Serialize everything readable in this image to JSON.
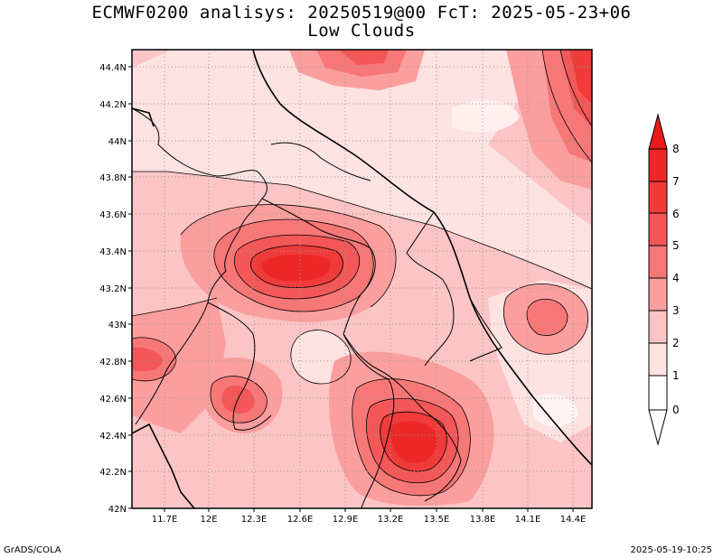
{
  "title": {
    "line1": "ECMWF0200 analisys: 20250519@00 FcT: 2025-05-23+06",
    "line2": "Low Clouds"
  },
  "footer": {
    "left": "GrADS/COLA",
    "right": "2025-05-19-10:25"
  },
  "map": {
    "region": "Central Italy (Marche, Umbria, Lazio, Abruzzo, Tuscany)",
    "lon_ticks": [
      "11.7E",
      "12E",
      "12.3E",
      "12.6E",
      "12.9E",
      "13.2E",
      "13.5E",
      "13.8E",
      "14.1E",
      "14.4E"
    ],
    "lat_ticks": [
      "44.4N",
      "44.2N",
      "44N",
      "43.8N",
      "43.6N",
      "43.4N",
      "43.2N",
      "43N",
      "42.8N",
      "42.6N",
      "42.4N",
      "42.2N",
      "42N"
    ],
    "lon_range": [
      11.55,
      14.5
    ],
    "lat_range": [
      42.0,
      44.5
    ],
    "grid": "dotted",
    "field": "Low Clouds",
    "maxima_centers": [
      {
        "lon": 12.6,
        "lat": 43.35,
        "value": 8
      },
      {
        "lon": 13.35,
        "lat": 42.35,
        "value": 8
      },
      {
        "lon": 14.4,
        "lat": 44.4,
        "value": 8
      },
      {
        "lon": 13.0,
        "lat": 44.45,
        "value": 7
      },
      {
        "lon": 12.2,
        "lat": 42.6,
        "value": 6
      },
      {
        "lon": 11.7,
        "lat": 42.8,
        "value": 6
      },
      {
        "lon": 14.2,
        "lat": 43.0,
        "value": 5
      },
      {
        "lon": 12.0,
        "lat": 43.65,
        "value": 3
      }
    ]
  },
  "colorbar": {
    "levels": [
      "0",
      "1",
      "2",
      "3",
      "4",
      "5",
      "6",
      "7",
      "8"
    ],
    "colors": [
      "#ffffff",
      "#fde2e2",
      "#fcc4c4",
      "#fa9e9e",
      "#f77777",
      "#f35757",
      "#f03b3b",
      "#ee2828",
      "#e81a1a"
    ]
  }
}
